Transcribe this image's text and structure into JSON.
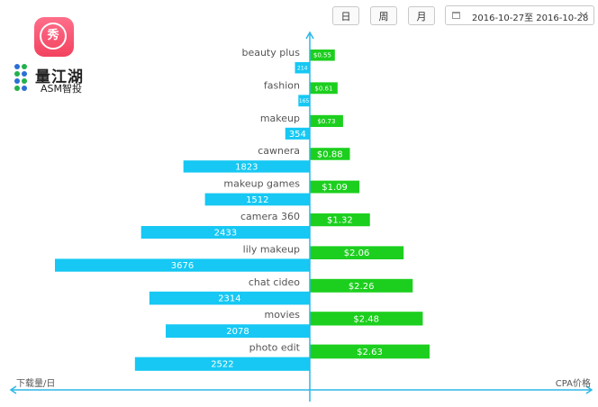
{
  "header": {
    "app_icon_glyph": "秀",
    "logo_cn": "量江湖",
    "logo_en": "ASM智投",
    "period_buttons": [
      "日",
      "周",
      "月"
    ],
    "date_range": "2016-10-27至 2016-10-28",
    "icons": [
      "calendar-icon",
      "chevron-down-icon"
    ]
  },
  "chart_data": {
    "type": "bar",
    "orientation": "horizontal-diverging",
    "categories": [
      "beauty plus",
      "fashion",
      "makeup",
      "cawnera",
      "makeup games",
      "camera 360",
      "lily makeup",
      "chat cideo",
      "movies",
      "photo edit"
    ],
    "series": [
      {
        "name": "下载量/日",
        "values": [
          214,
          165,
          354,
          1823,
          1512,
          2433,
          3676,
          2314,
          2078,
          2522
        ],
        "labels": [
          "214",
          "165",
          "354",
          "1823",
          "1512",
          "2433",
          "3676",
          "2314",
          "2078",
          "2522"
        ],
        "color": "#16c8f3",
        "direction": "left"
      },
      {
        "name": "CPA价格",
        "values": [
          0.55,
          0.61,
          0.73,
          0.88,
          1.09,
          1.32,
          2.06,
          2.26,
          2.48,
          2.63
        ],
        "labels": [
          "$0.55",
          "$0.61",
          "$0.73",
          "$0.88",
          "$1.09",
          "$1.32",
          "$2.06",
          "$2.26",
          "$2.48",
          "$2.63"
        ],
        "color": "#1ccf1e",
        "direction": "right"
      }
    ],
    "xlabel_left": "下载量/日",
    "xlabel_right": "CPA价格",
    "axis_color": "#2db7e7"
  }
}
